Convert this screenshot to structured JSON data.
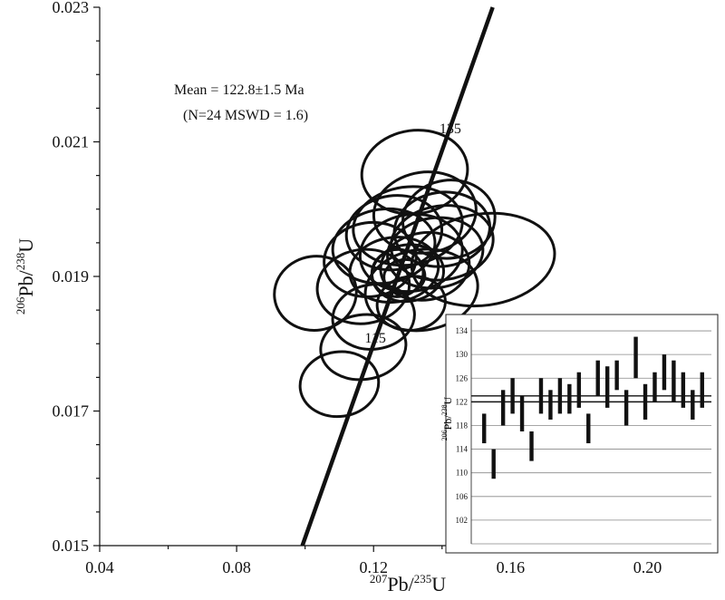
{
  "chart_data": [
    {
      "type": "scatter",
      "subtype": "concordia",
      "xlabel": {
        "sup": "207",
        "base": "Pb/",
        "sup2": "235",
        "base2": "U"
      },
      "ylabel": {
        "sup": "206",
        "base": "Pb/",
        "sup2": "238",
        "base2": "U"
      },
      "xlim": [
        0.04,
        0.22
      ],
      "ylim": [
        0.015,
        0.023
      ],
      "xticks": [
        "0.04",
        "0.08",
        "0.12",
        "0.16",
        "0.20"
      ],
      "yticks": [
        "0.015",
        "0.017",
        "0.019",
        "0.021",
        "0.023"
      ],
      "annotation": {
        "line1": "Mean = 122.8±1.5 Ma",
        "line2": "(N=24 MSWD = 1.6)"
      },
      "concordia_labels": [
        {
          "text": "135",
          "x": 0.1424,
          "y": 0.02113
        },
        {
          "text": "115",
          "x": 0.1205,
          "y": 0.01802
        }
      ],
      "concordia_line": {
        "x": [
          0.0992,
          0.1548
        ],
        "y": [
          0.015,
          0.023
        ]
      },
      "ellipses": [
        {
          "cx": 0.132,
          "cy": 0.02055,
          "rx": 0.0155,
          "ry": 0.00062
        },
        {
          "cx": 0.135,
          "cy": 0.01995,
          "rx": 0.015,
          "ry": 0.0006
        },
        {
          "cx": 0.13,
          "cy": 0.01975,
          "rx": 0.016,
          "ry": 0.00058
        },
        {
          "cx": 0.142,
          "cy": 0.01985,
          "rx": 0.0135,
          "ry": 0.00058
        },
        {
          "cx": 0.14,
          "cy": 0.0197,
          "rx": 0.014,
          "ry": 0.00055
        },
        {
          "cx": 0.126,
          "cy": 0.01965,
          "rx": 0.014,
          "ry": 0.00055
        },
        {
          "cx": 0.123,
          "cy": 0.01945,
          "rx": 0.015,
          "ry": 0.00055
        },
        {
          "cx": 0.14,
          "cy": 0.0195,
          "rx": 0.015,
          "ry": 0.00055
        },
        {
          "cx": 0.119,
          "cy": 0.01925,
          "rx": 0.0135,
          "ry": 0.00055
        },
        {
          "cx": 0.131,
          "cy": 0.01935,
          "rx": 0.015,
          "ry": 0.00057
        },
        {
          "cx": 0.152,
          "cy": 0.01925,
          "rx": 0.021,
          "ry": 0.00068
        },
        {
          "cx": 0.135,
          "cy": 0.01915,
          "rx": 0.013,
          "ry": 0.0005
        },
        {
          "cx": 0.138,
          "cy": 0.01935,
          "rx": 0.014,
          "ry": 0.00052
        },
        {
          "cx": 0.126,
          "cy": 0.0191,
          "rx": 0.013,
          "ry": 0.00048
        },
        {
          "cx": 0.13,
          "cy": 0.01905,
          "rx": 0.0105,
          "ry": 0.00042
        },
        {
          "cx": 0.127,
          "cy": 0.01905,
          "rx": 0.0075,
          "ry": 0.00035
        },
        {
          "cx": 0.129,
          "cy": 0.019,
          "rx": 0.006,
          "ry": 0.00025
        },
        {
          "cx": 0.117,
          "cy": 0.01885,
          "rx": 0.0135,
          "ry": 0.00055
        },
        {
          "cx": 0.103,
          "cy": 0.01875,
          "rx": 0.012,
          "ry": 0.00055
        },
        {
          "cx": 0.134,
          "cy": 0.0188,
          "rx": 0.0165,
          "ry": 0.0006
        },
        {
          "cx": 0.12,
          "cy": 0.0184,
          "rx": 0.012,
          "ry": 0.00048
        },
        {
          "cx": 0.117,
          "cy": 0.01795,
          "rx": 0.0125,
          "ry": 0.00048
        },
        {
          "cx": 0.11,
          "cy": 0.0174,
          "rx": 0.0115,
          "ry": 0.00048
        },
        {
          "cx": 0.131,
          "cy": 0.0186,
          "rx": 0.01,
          "ry": 0.0004
        }
      ]
    },
    {
      "type": "bar",
      "subtype": "weighted-mean",
      "ylabel": {
        "sup": "206",
        "base": "Pb/",
        "sup2": "238",
        "base2": "U"
      },
      "ylim": [
        98,
        136
      ],
      "yticks": [
        "102",
        "106",
        "110",
        "114",
        "118",
        "122",
        "126",
        "130",
        "134"
      ],
      "mean": 122.8,
      "mean_band": [
        122.0,
        123.0
      ],
      "bars": [
        {
          "lo": 115,
          "hi": 120
        },
        {
          "lo": 109,
          "hi": 114
        },
        {
          "lo": 118,
          "hi": 124
        },
        {
          "lo": 120,
          "hi": 126
        },
        {
          "lo": 117,
          "hi": 123
        },
        {
          "lo": 112,
          "hi": 117
        },
        {
          "lo": 120,
          "hi": 126
        },
        {
          "lo": 119,
          "hi": 124
        },
        {
          "lo": 120,
          "hi": 126
        },
        {
          "lo": 120,
          "hi": 125
        },
        {
          "lo": 121,
          "hi": 127
        },
        {
          "lo": 115,
          "hi": 120
        },
        {
          "lo": 123,
          "hi": 129
        },
        {
          "lo": 121,
          "hi": 128
        },
        {
          "lo": 124,
          "hi": 129
        },
        {
          "lo": 118,
          "hi": 124
        },
        {
          "lo": 126,
          "hi": 133
        },
        {
          "lo": 119,
          "hi": 125
        },
        {
          "lo": 122,
          "hi": 127
        },
        {
          "lo": 124,
          "hi": 130
        },
        {
          "lo": 122,
          "hi": 129
        },
        {
          "lo": 121,
          "hi": 127
        },
        {
          "lo": 119,
          "hi": 124
        },
        {
          "lo": 121,
          "hi": 127
        }
      ]
    }
  ]
}
